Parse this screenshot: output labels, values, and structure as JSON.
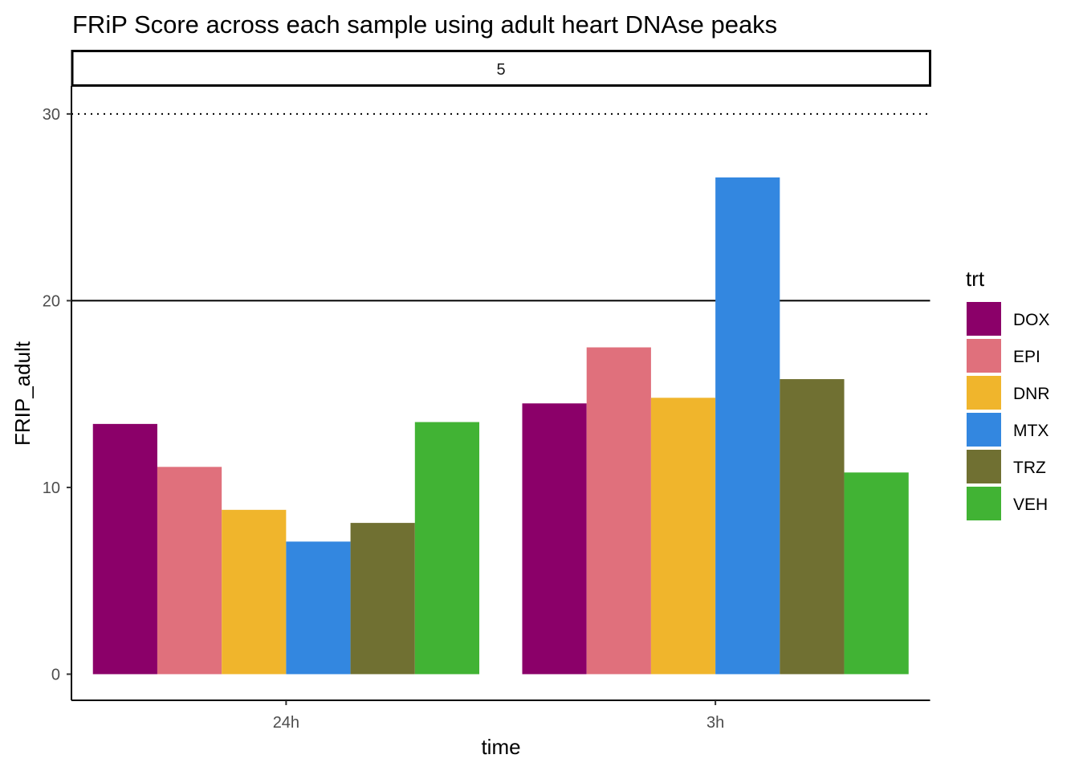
{
  "chart_data": {
    "type": "bar",
    "title": "FRiP Score across each sample using adult heart DNAse peaks",
    "facet_label": "5",
    "xlabel": "time",
    "ylabel": "FRIP_adult",
    "categories": [
      "24h",
      "3h"
    ],
    "ylim": [
      -1.4,
      31.5
    ],
    "yticks": [
      0,
      10,
      20,
      30
    ],
    "grid": false,
    "reference_lines": [
      {
        "y": 20,
        "style": "solid"
      },
      {
        "y": 30,
        "style": "dotted"
      }
    ],
    "legend": {
      "title": "trt",
      "position": "right"
    },
    "series": [
      {
        "name": "DOX",
        "color": "#8B0069",
        "values": [
          13.4,
          14.5
        ]
      },
      {
        "name": "EPI",
        "color": "#E0707C",
        "values": [
          11.1,
          17.5
        ]
      },
      {
        "name": "DNR",
        "color": "#F0B52C",
        "values": [
          8.8,
          14.8
        ]
      },
      {
        "name": "MTX",
        "color": "#3387E0",
        "values": [
          7.1,
          26.6
        ]
      },
      {
        "name": "TRZ",
        "color": "#707032",
        "values": [
          8.1,
          15.8
        ]
      },
      {
        "name": "VEH",
        "color": "#41B334",
        "values": [
          13.5,
          10.8
        ]
      }
    ]
  }
}
